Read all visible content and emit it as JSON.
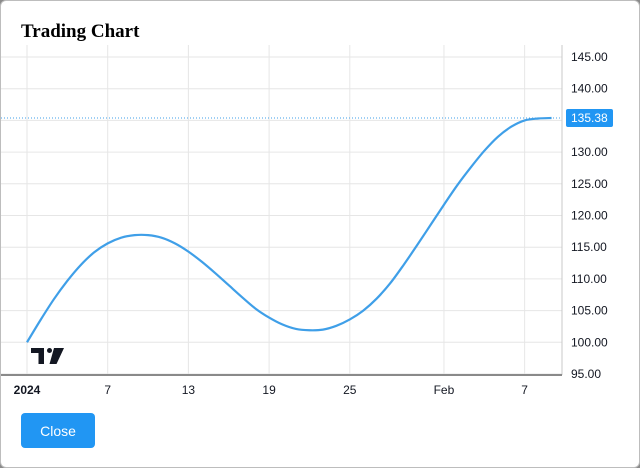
{
  "dialog": {
    "title": "Trading Chart",
    "close_label": "Close"
  },
  "colors": {
    "line": "#3f9fe8",
    "last_price_tag": "#2196f3",
    "grid": "#e6e6e6",
    "button": "#2196f3"
  },
  "logo": {
    "icon": "tradingview-logo-icon"
  },
  "chart_data": {
    "type": "line",
    "title": "",
    "xlabel": "",
    "ylabel": "",
    "ylim": [
      95,
      145
    ],
    "yticks": [
      "145.00",
      "140.00",
      "135.00",
      "130.00",
      "125.00",
      "120.00",
      "115.00",
      "110.00",
      "105.00",
      "100.00",
      "95.00"
    ],
    "xticks": [
      "2024",
      "7",
      "13",
      "19",
      "25",
      "Feb",
      "7"
    ],
    "last_price": "135.38",
    "grid": true,
    "series": [
      {
        "x": [
          "2024-01-01",
          "2024-01-02",
          "2024-01-03",
          "2024-01-04",
          "2024-01-05",
          "2024-01-06",
          "2024-01-07",
          "2024-01-08",
          "2024-01-09",
          "2024-01-10",
          "2024-01-11",
          "2024-01-12",
          "2024-01-13",
          "2024-01-14",
          "2024-01-15",
          "2024-01-16",
          "2024-01-17",
          "2024-01-18",
          "2024-01-19",
          "2024-01-20",
          "2024-01-21",
          "2024-01-22",
          "2024-01-23",
          "2024-01-24",
          "2024-01-25",
          "2024-01-26",
          "2024-01-27",
          "2024-01-28",
          "2024-01-29",
          "2024-01-30",
          "2024-01-31",
          "2024-02-01",
          "2024-02-02",
          "2024-02-03",
          "2024-02-04",
          "2024-02-05",
          "2024-02-06",
          "2024-02-07",
          "2024-02-08",
          "2024-02-09"
        ],
        "values": [
          100.0,
          103.5,
          106.8,
          109.7,
          112.2,
          114.2,
          115.6,
          116.5,
          116.9,
          116.9,
          116.5,
          115.6,
          114.3,
          112.7,
          110.9,
          109.0,
          107.1,
          105.3,
          103.9,
          102.8,
          102.1,
          101.9,
          102.0,
          102.6,
          103.6,
          105.0,
          106.9,
          109.3,
          112.2,
          115.3,
          118.5,
          121.7,
          124.8,
          127.6,
          130.2,
          132.4,
          134.0,
          135.0,
          135.3,
          135.38
        ]
      }
    ]
  }
}
